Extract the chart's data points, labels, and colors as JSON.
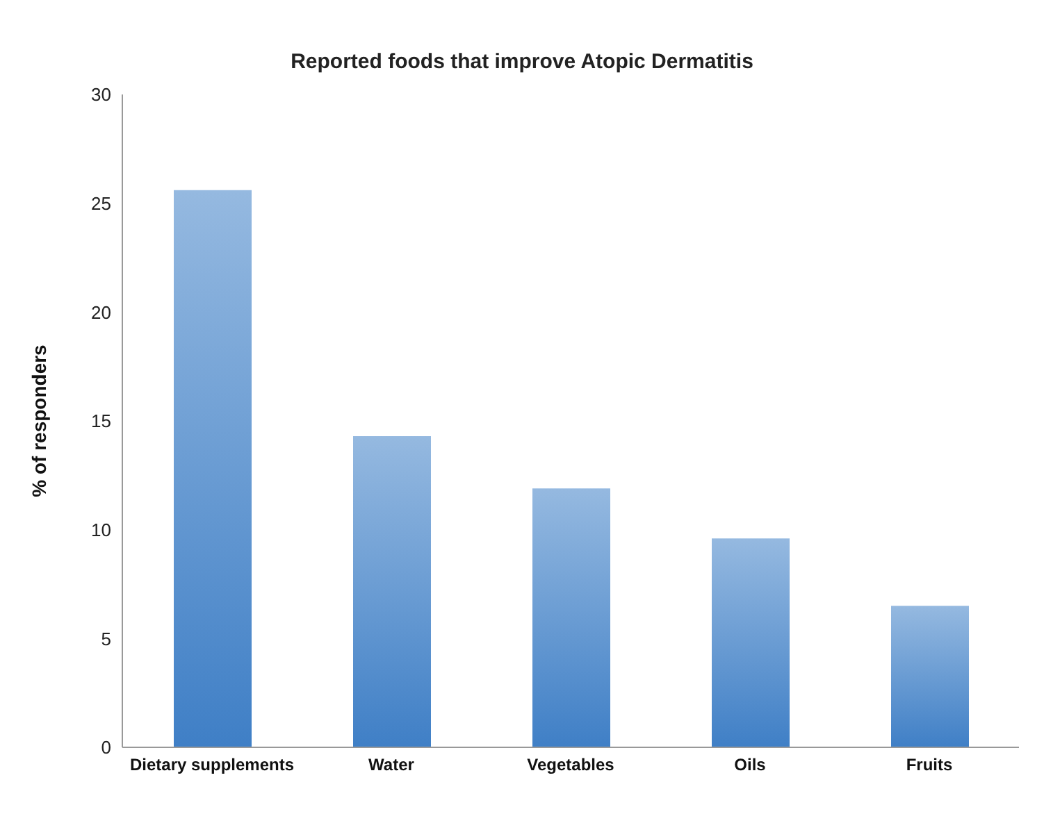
{
  "chart_data": {
    "type": "bar",
    "title": "Reported foods that improve Atopic Dermatitis",
    "ylabel": "% of responders",
    "categories": [
      "Dietary supplements",
      "Water",
      "Vegetables",
      "Oils",
      "Fruits"
    ],
    "values": [
      25.6,
      14.3,
      11.9,
      9.6,
      6.5
    ],
    "color": "#3f7fc6",
    "ylim": [
      0,
      30
    ],
    "yticks": [
      0,
      5,
      10,
      15,
      20,
      25,
      30
    ],
    "grid": false,
    "legend": false
  }
}
